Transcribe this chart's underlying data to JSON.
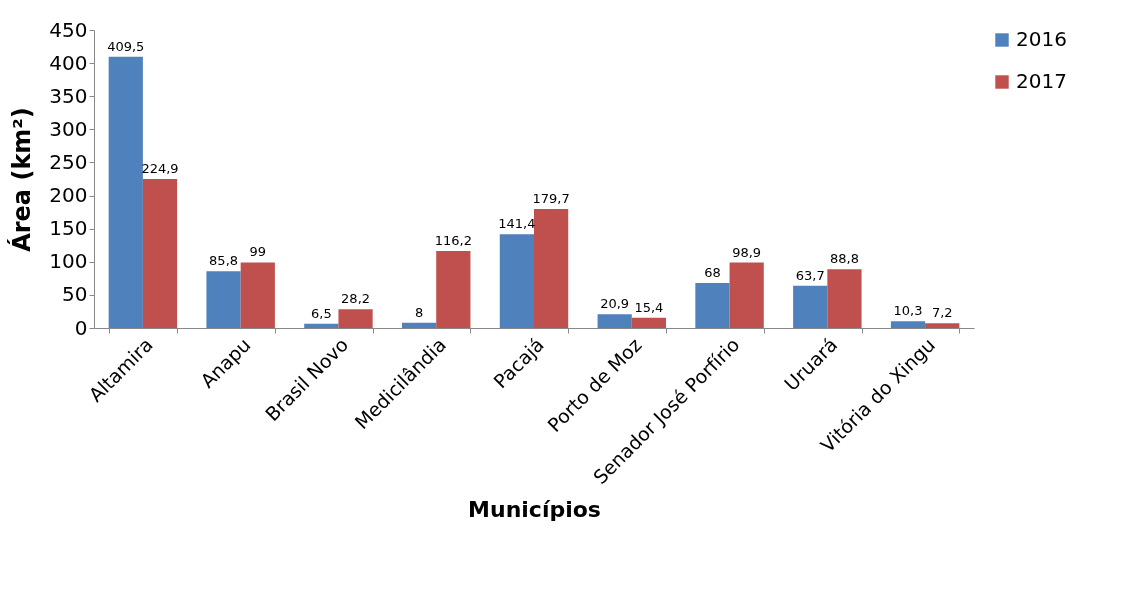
{
  "chart_data": {
    "type": "bar",
    "xlabel": "Municípios",
    "ylabel": "Área (km²)",
    "categories": [
      "Altamira",
      "Anapu",
      "Brasil Novo",
      "Medicilândia",
      "Pacajá",
      "Porto de Moz",
      "Senador José Porfírio",
      "Uruará",
      "Vitória do Xingu"
    ],
    "series": [
      {
        "name": "2016",
        "color": "#4f81bd",
        "values": [
          409.5,
          85.8,
          6.5,
          8,
          141.4,
          20.9,
          68,
          63.7,
          10.3
        ],
        "value_labels": [
          "409,5",
          "85,8",
          "6,5",
          "8",
          "141,4",
          "20,9",
          "68",
          "63,7",
          "10,3"
        ]
      },
      {
        "name": "2017",
        "color": "#c0504d",
        "values": [
          224.9,
          99,
          28.2,
          116.2,
          179.7,
          15.4,
          98.9,
          88.8,
          7.2
        ],
        "value_labels": [
          "224,9",
          "99",
          "28,2",
          "116,2",
          "179,7",
          "15,4",
          "98,9",
          "88,8",
          "7,2"
        ]
      }
    ],
    "ylim": [
      0,
      450
    ],
    "yticks": [
      0,
      50,
      100,
      150,
      200,
      250,
      300,
      350,
      400,
      450
    ],
    "grid": false,
    "legend": "right"
  }
}
